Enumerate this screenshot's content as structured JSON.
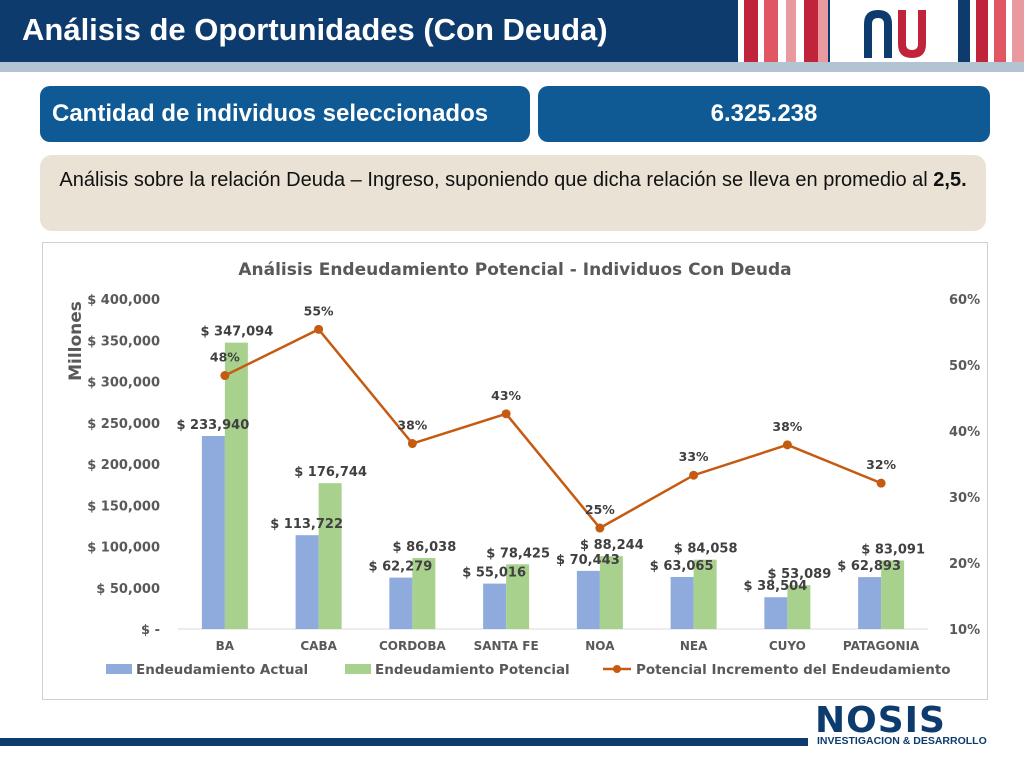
{
  "header": {
    "title": "Análisis de Oportunidades (Con Deuda)",
    "colors": {
      "navy": "#0e3b6e",
      "red": "#c0233a",
      "light": "#e89a9f"
    }
  },
  "summary": {
    "label": "Cantidad de individuos seleccionados",
    "value": "6.325.238"
  },
  "note": {
    "text": "Análisis sobre la relación Deuda – Ingreso, suponiendo que dicha relación se lleva en promedio al ",
    "bold": "2,5."
  },
  "chart_data": {
    "type": "bar",
    "title": "Análisis Endeudamiento Potencial - Individuos Con Deuda",
    "ylabel": "Millones",
    "categories": [
      "BA",
      "CABA",
      "CORDOBA",
      "SANTA FE",
      "NOA",
      "NEA",
      "CUYO",
      "PATAGONIA"
    ],
    "ylim": [
      0,
      400000
    ],
    "y_ticks": [
      "$ -",
      "$ 50,000",
      "$ 100,000",
      "$ 150,000",
      "$ 200,000",
      "$ 250,000",
      "$ 300,000",
      "$ 350,000",
      "$ 400,000"
    ],
    "y2lim": [
      10,
      60
    ],
    "y2_ticks": [
      "10%",
      "20%",
      "30%",
      "40%",
      "50%",
      "60%"
    ],
    "series": [
      {
        "name": "Endeudamiento Actual",
        "type": "bar",
        "color": "#8faadc",
        "values": [
          233940,
          113722,
          62279,
          55016,
          70443,
          63065,
          38504,
          62893
        ],
        "labels": [
          "$ 233,940",
          "$ 113,722",
          "$ 62,279",
          "$ 55,016",
          "$ 70,443",
          "$ 63,065",
          "$ 38,504",
          "$ 62,893"
        ]
      },
      {
        "name": "Endeudamiento Potencial",
        "type": "bar",
        "color": "#a9d18e",
        "values": [
          347094,
          176744,
          86038,
          78425,
          88244,
          84058,
          53089,
          83091
        ],
        "labels": [
          "$ 347,094",
          "$ 176,744",
          "$ 86,038",
          "$ 78,425",
          "$ 88,244",
          "$ 84,058",
          "$ 53,089",
          "$ 83,091"
        ]
      },
      {
        "name": "Potencial Incremento del Endeudamiento",
        "type": "line",
        "axis": "right",
        "color": "#c55a11",
        "values": [
          48.4,
          55.4,
          38.1,
          42.6,
          25.3,
          33.3,
          37.9,
          32.1
        ],
        "labels": [
          "48%",
          "55%",
          "38%",
          "43%",
          "25%",
          "33%",
          "38%",
          "32%"
        ]
      }
    ],
    "legend_position": "bottom",
    "grid": false
  },
  "footer": {
    "brand": "NOSIS",
    "tagline": "INVESTIGACION & DESARROLLO"
  }
}
